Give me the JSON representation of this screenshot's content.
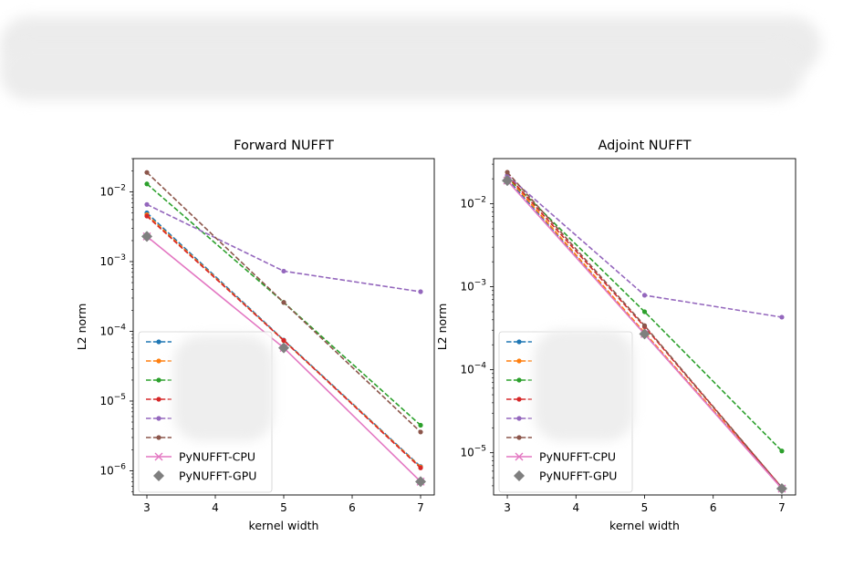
{
  "colors": {
    "blue": "#1f77b4",
    "orange": "#ff7f0e",
    "green": "#2ca02c",
    "red": "#d62728",
    "purple": "#9467bd",
    "brown": "#8c564b",
    "pink": "#e377c2",
    "gray": "#7f7f7f"
  },
  "chart_data": [
    {
      "type": "line",
      "title": "Forward NUFFT",
      "xlabel": "kernel width",
      "ylabel": "L2 norm",
      "yscale": "log",
      "xlim": [
        2.8,
        7.2
      ],
      "ylim": [
        4.5e-07,
        0.03
      ],
      "xticks": [
        "3",
        "4",
        "5",
        "6",
        "7"
      ],
      "yticks": [
        {
          "base": "10",
          "exp": "−2",
          "value": 0.01
        },
        {
          "base": "10",
          "exp": "−3",
          "value": 0.001
        },
        {
          "base": "10",
          "exp": "−4",
          "value": 0.0001
        },
        {
          "base": "10",
          "exp": "−5",
          "value": 1e-05
        },
        {
          "base": "10",
          "exp": "−6",
          "value": 1e-06
        }
      ],
      "x": [
        3,
        5,
        7
      ],
      "series": [
        {
          "name": "",
          "color": "blue",
          "style": "dashed",
          "marker": "dot",
          "values": [
            0.005,
            7.5e-05,
            1.15e-06
          ]
        },
        {
          "name": "",
          "color": "orange",
          "style": "dashed",
          "marker": "dot",
          "values": [
            0.0047,
            7.4e-05,
            1.13e-06
          ]
        },
        {
          "name": "",
          "color": "green",
          "style": "dashed",
          "marker": "dot",
          "values": [
            0.013,
            0.00026,
            4.5e-06
          ]
        },
        {
          "name": "",
          "color": "red",
          "style": "dashed",
          "marker": "dot",
          "values": [
            0.0045,
            7.4e-05,
            1.1e-06
          ]
        },
        {
          "name": "",
          "color": "purple",
          "style": "dashed",
          "marker": "dot",
          "values": [
            0.0066,
            0.00073,
            0.00037
          ]
        },
        {
          "name": "",
          "color": "brown",
          "style": "dashed",
          "marker": "dot",
          "values": [
            0.019,
            0.00026,
            3.6e-06
          ]
        },
        {
          "name": "PyNUFFT-CPU",
          "color": "pink",
          "style": "solid",
          "marker": "x",
          "values": [
            0.0023,
            5.8e-05,
            7e-07
          ]
        },
        {
          "name": "PyNUFFT-GPU",
          "color": "gray",
          "style": "none",
          "marker": "diamond",
          "values": [
            0.0023,
            5.8e-05,
            7e-07
          ]
        }
      ],
      "legend": {
        "placement": "lower-left"
      }
    },
    {
      "type": "line",
      "title": "Adjoint NUFFT",
      "xlabel": "kernel width",
      "ylabel": "L2 norm",
      "yscale": "log",
      "xlim": [
        2.8,
        7.2
      ],
      "ylim": [
        3.1e-06,
        0.035
      ],
      "xticks": [
        "3",
        "4",
        "5",
        "6",
        "7"
      ],
      "yticks": [
        {
          "base": "10",
          "exp": "−2",
          "value": 0.01
        },
        {
          "base": "10",
          "exp": "−3",
          "value": 0.001
        },
        {
          "base": "10",
          "exp": "−4",
          "value": 0.0001
        },
        {
          "base": "10",
          "exp": "−5",
          "value": 1e-05
        }
      ],
      "x": [
        3,
        5,
        7
      ],
      "series": [
        {
          "name": "",
          "color": "blue",
          "style": "dashed",
          "marker": "dot",
          "values": [
            0.02,
            0.00027,
            3.8e-06
          ]
        },
        {
          "name": "",
          "color": "orange",
          "style": "dashed",
          "marker": "dot",
          "values": [
            0.021,
            0.00028,
            3.8e-06
          ]
        },
        {
          "name": "",
          "color": "green",
          "style": "dashed",
          "marker": "dot",
          "values": [
            0.021,
            0.0005,
            1.05e-05
          ]
        },
        {
          "name": "",
          "color": "red",
          "style": "dashed",
          "marker": "dot",
          "values": [
            0.022,
            0.00033,
            3.8e-06
          ]
        },
        {
          "name": "",
          "color": "purple",
          "style": "dashed",
          "marker": "dot",
          "values": [
            0.022,
            0.00079,
            0.00043
          ]
        },
        {
          "name": "",
          "color": "brown",
          "style": "dashed",
          "marker": "dot",
          "values": [
            0.024,
            0.00034,
            3.8e-06
          ]
        },
        {
          "name": "PyNUFFT-CPU",
          "color": "pink",
          "style": "solid",
          "marker": "x",
          "values": [
            0.019,
            0.00027,
            3.7e-06
          ]
        },
        {
          "name": "PyNUFFT-GPU",
          "color": "gray",
          "style": "none",
          "marker": "diamond",
          "values": [
            0.019,
            0.00027,
            3.7e-06
          ]
        }
      ],
      "legend": {
        "placement": "lower-left"
      }
    }
  ]
}
